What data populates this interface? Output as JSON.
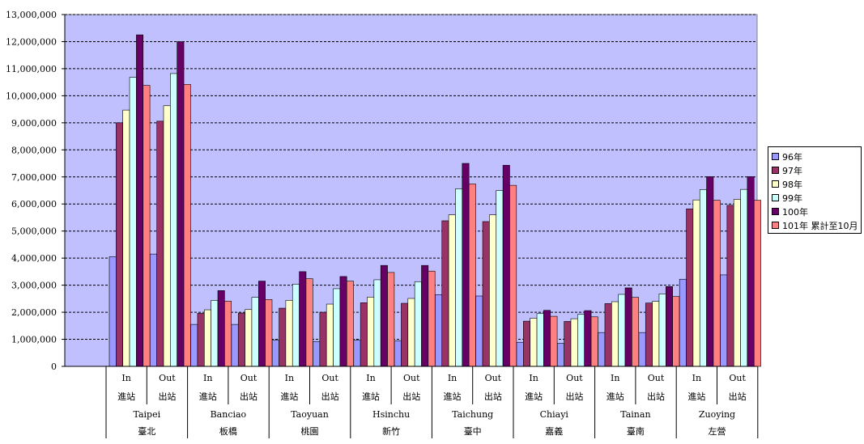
{
  "chart_data": {
    "type": "bar",
    "title": "",
    "xlabel": "",
    "ylabel": "",
    "ylim": [
      0,
      13000000
    ],
    "y_ticks": [
      "0",
      "1,000,000",
      "2,000,000",
      "3,000,000",
      "4,000,000",
      "5,000,000",
      "6,000,000",
      "7,000,000",
      "8,000,000",
      "9,000,000",
      "10,000,000",
      "11,000,000",
      "12,000,000",
      "13,000,000"
    ],
    "grid": true,
    "legend_position": "right",
    "stations": [
      {
        "en": "Taipei",
        "zh": "臺北"
      },
      {
        "en": "Banciao",
        "zh": "板橋"
      },
      {
        "en": "Taoyuan",
        "zh": "桃園"
      },
      {
        "en": "Hsinchu",
        "zh": "新竹"
      },
      {
        "en": "Taichung",
        "zh": "臺中"
      },
      {
        "en": "Chiayi",
        "zh": "嘉義"
      },
      {
        "en": "Tainan",
        "zh": "臺南"
      },
      {
        "en": "Zuoying",
        "zh": "左營"
      }
    ],
    "directions": [
      {
        "en": "In",
        "zh": "進站"
      },
      {
        "en": "Out",
        "zh": "出站"
      }
    ],
    "categories": [
      "Taipei In",
      "Taipei Out",
      "Banciao In",
      "Banciao Out",
      "Taoyuan In",
      "Taoyuan Out",
      "Hsinchu In",
      "Hsinchu Out",
      "Taichung In",
      "Taichung Out",
      "Chiayi In",
      "Chiayi Out",
      "Tainan In",
      "Tainan Out",
      "Zuoying In",
      "Zuoying Out"
    ],
    "series": [
      {
        "name": "96年",
        "color": "#9999ff",
        "values": [
          4050000,
          4150000,
          1550000,
          1550000,
          970000,
          920000,
          970000,
          940000,
          2650000,
          2600000,
          890000,
          850000,
          1250000,
          1250000,
          3220000,
          3380000
        ]
      },
      {
        "name": "97年",
        "color": "#993366",
        "values": [
          9000000,
          9060000,
          1960000,
          1970000,
          2150000,
          2000000,
          2350000,
          2330000,
          5380000,
          5350000,
          1670000,
          1660000,
          2320000,
          2340000,
          5820000,
          5950000
        ]
      },
      {
        "name": "98年",
        "color": "#ffffcc",
        "values": [
          9470000,
          9630000,
          2090000,
          2100000,
          2440000,
          2300000,
          2560000,
          2510000,
          5600000,
          5600000,
          1780000,
          1760000,
          2390000,
          2400000,
          6150000,
          6170000
        ]
      },
      {
        "name": "99年",
        "color": "#ccffff",
        "values": [
          10680000,
          10820000,
          2440000,
          2550000,
          3040000,
          2870000,
          3200000,
          3130000,
          6560000,
          6500000,
          1950000,
          1920000,
          2660000,
          2680000,
          6530000,
          6540000
        ]
      },
      {
        "name": "100年",
        "color": "#660066",
        "values": [
          12250000,
          12000000,
          2800000,
          3150000,
          3500000,
          3320000,
          3730000,
          3730000,
          7500000,
          7430000,
          2070000,
          2060000,
          2900000,
          2950000,
          7010000,
          7010000
        ]
      },
      {
        "name": "101年 累計至10月",
        "color": "#ff8080",
        "values": [
          10380000,
          10420000,
          2410000,
          2470000,
          3240000,
          3150000,
          3470000,
          3520000,
          6740000,
          6690000,
          1850000,
          1830000,
          2550000,
          2580000,
          6140000,
          6140000
        ]
      }
    ]
  }
}
